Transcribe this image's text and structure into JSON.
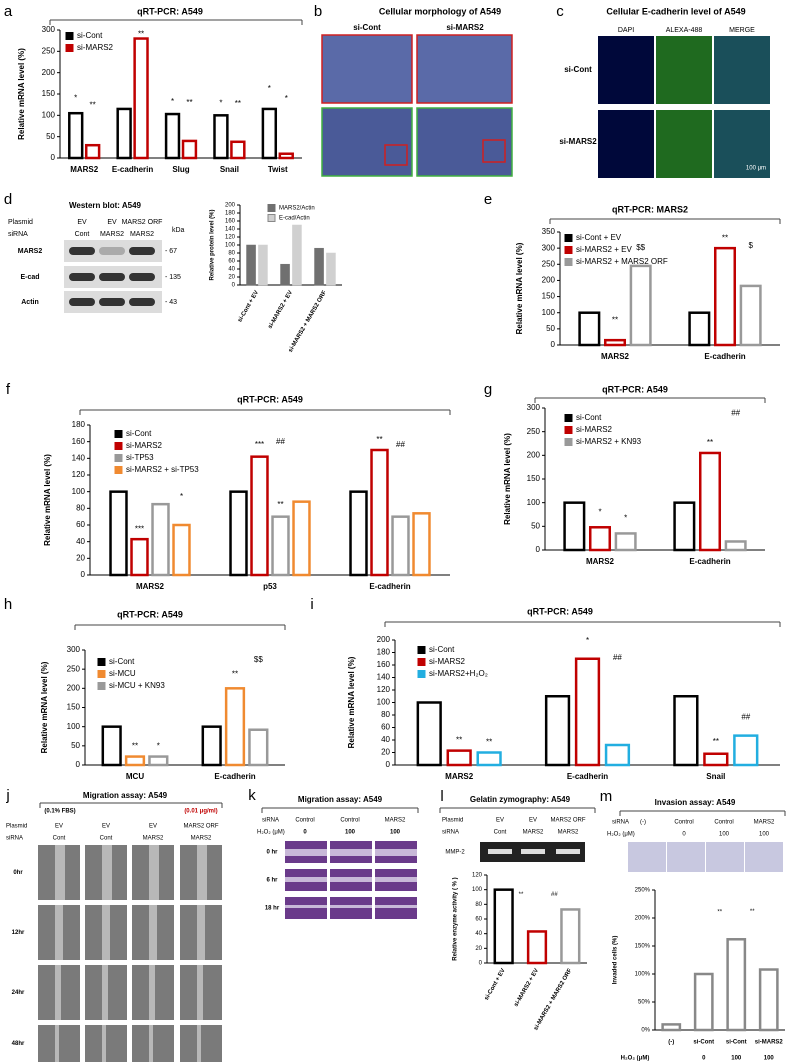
{
  "panels": {
    "b": {
      "label": "b",
      "title": "Cellular morphology of A549",
      "columns": [
        "si-Cont",
        "si-MARS2"
      ]
    },
    "c": {
      "label": "c",
      "title": "Cellular E-cadherin level of A549",
      "columns": [
        "DAPI",
        "ALEXA-488",
        "MERGE"
      ],
      "rows": [
        "si-Cont",
        "si-MARS2"
      ],
      "scale_bar": "100 μm"
    },
    "d": {
      "label": "d",
      "title": "Western blot: A549",
      "row_headers": [
        "Plasmid",
        "siRNA"
      ],
      "lanes": [
        [
          "EV",
          "Cont"
        ],
        [
          "EV",
          "MARS2"
        ],
        [
          "MARS2 ORF",
          "MARS2"
        ]
      ],
      "unit": "kDa",
      "bands": [
        "MARS2",
        "E-cad",
        "Actin"
      ],
      "sizes": [
        "- 67",
        "- 135",
        "- 43"
      ]
    },
    "j": {
      "label": "j",
      "title": "Migration assay: A549",
      "conditions": [
        "(0.1% FBS)",
        "(0.01 μg/ml)"
      ],
      "row_headers": [
        "Plasmid",
        "siRNA"
      ],
      "lanes": [
        [
          "EV",
          "Cont"
        ],
        [
          "EV",
          "Cont"
        ],
        [
          "EV",
          "MARS2"
        ],
        [
          "MARS2 ORF",
          "MARS2"
        ]
      ],
      "times": [
        "0hr",
        "12hr",
        "24hr",
        "48hr"
      ]
    },
    "k": {
      "label": "k",
      "title": "Migration assay: A549",
      "row_headers": [
        "siRNA",
        "H₂O₂ (μM)"
      ],
      "lanes": [
        [
          "Control",
          "0"
        ],
        [
          "Control",
          "100"
        ],
        [
          "MARS2",
          "100"
        ]
      ],
      "times": [
        "0 hr",
        "6 hr",
        "18 hr"
      ]
    },
    "l": {
      "title": "Gelatin zymography: A549",
      "row_headers": [
        "Plasmid",
        "siRNA"
      ],
      "lanes": [
        [
          "EV",
          "Cont"
        ],
        [
          "EV",
          "MARS2"
        ],
        [
          "MARS2 ORF",
          "MARS2"
        ]
      ],
      "band": "MMP-2"
    },
    "m": {
      "title": "Invasion assay: A549",
      "row_headers": [
        "siRNA",
        "H₂O₂ (μM)"
      ],
      "lanes": [
        [
          "(-)",
          null
        ],
        [
          "Control",
          "0"
        ],
        [
          "Control",
          "100"
        ],
        [
          "MARS2",
          "100"
        ]
      ]
    }
  },
  "chart_data": [
    {
      "type": "bar",
      "label": "a",
      "title": "qRT-PCR: A549",
      "ylabel": "Relative mRNA level (%)",
      "bar_style": "outline",
      "legend": "upper left",
      "categories": [
        "MARS2",
        "E-cadherin",
        "Slug",
        "Snail",
        "Twist"
      ],
      "series": [
        {
          "name": "si-Cont",
          "color": "#000000",
          "values": [
            105,
            115,
            103,
            100,
            115
          ]
        },
        {
          "name": "si-MARS2",
          "color": "#c00000",
          "values": [
            30,
            280,
            40,
            38,
            10
          ]
        }
      ],
      "ylim": [
        0,
        300
      ],
      "yticks": [
        0,
        50,
        100,
        150,
        200,
        250,
        300
      ],
      "annotations": [
        "*",
        "**",
        "**",
        "*",
        "**",
        "*",
        "**",
        "*",
        "*"
      ]
    },
    {
      "type": "bar",
      "ylabel": "Relative protein level (%)",
      "bar_style": "filled",
      "legend": "upper center",
      "categories": [
        "si-Cont + EV",
        "si-MARS2 + EV",
        "si-MARS2 + MARS2 ORF"
      ],
      "series": [
        {
          "name": "MARS2/Actin",
          "color": "#707070",
          "values": [
            100,
            52,
            92
          ]
        },
        {
          "name": "E-cad/Actin",
          "color": "#d0d0d0",
          "values": [
            100,
            150,
            80
          ]
        }
      ],
      "ylim": [
        0,
        200
      ],
      "yticks": [
        0,
        20,
        40,
        60,
        80,
        100,
        120,
        140,
        160,
        180,
        200
      ]
    },
    {
      "type": "bar",
      "label": "e",
      "title": "qRT-PCR: MARS2",
      "ylabel": "Relative mRNA level (%)",
      "bar_style": "outline",
      "legend": "upper left",
      "categories": [
        "MARS2",
        "E-cadherin"
      ],
      "series": [
        {
          "name": "si-Cont + EV",
          "color": "#000000",
          "values": [
            100,
            100
          ]
        },
        {
          "name": "si-MARS2 + EV",
          "color": "#c00000",
          "values": [
            15,
            300
          ]
        },
        {
          "name": "si-MARS2 + MARS2 ORF",
          "color": "#999999",
          "values": [
            245,
            183
          ]
        }
      ],
      "ylim": [
        0,
        350
      ],
      "yticks": [
        0,
        50,
        100,
        150,
        200,
        250,
        300,
        350
      ],
      "annotations": [
        "**",
        "$$",
        "**",
        "$"
      ]
    },
    {
      "type": "bar",
      "label": "f",
      "title": "qRT-PCR: A549",
      "ylabel": "Relative mRNA level (%)",
      "bar_style": "outline",
      "legend": "upper left",
      "categories": [
        "MARS2",
        "p53",
        "E-cadherin"
      ],
      "series": [
        {
          "name": "si-Cont",
          "color": "#000000",
          "values": [
            100,
            100,
            100
          ]
        },
        {
          "name": "si-MARS2",
          "color": "#c00000",
          "values": [
            43,
            142,
            150
          ]
        },
        {
          "name": "si-TP53",
          "color": "#999999",
          "values": [
            85,
            70,
            70
          ]
        },
        {
          "name": "si-MARS2 + si-TP53",
          "color": "#f08a30",
          "values": [
            60,
            88,
            74
          ]
        }
      ],
      "ylim": [
        0,
        180
      ],
      "yticks": [
        0,
        20,
        40,
        60,
        80,
        100,
        120,
        140,
        160,
        180
      ],
      "annotations": [
        "***",
        "*",
        "***",
        "**",
        "##",
        "**",
        "##"
      ]
    },
    {
      "type": "bar",
      "label": "g",
      "title": "qRT-PCR: A549",
      "ylabel": "Relative mRNA level (%)",
      "bar_style": "outline",
      "legend": "upper left",
      "categories": [
        "MARS2",
        "E-cadherin"
      ],
      "series": [
        {
          "name": "si-Cont",
          "color": "#000000",
          "values": [
            100,
            100
          ]
        },
        {
          "name": "si-MARS2",
          "color": "#c00000",
          "values": [
            48,
            205
          ]
        },
        {
          "name": "si-MARS2 + KN93",
          "color": "#999999",
          "values": [
            35,
            18
          ]
        }
      ],
      "ylim": [
        0,
        300
      ],
      "yticks": [
        0,
        50,
        100,
        150,
        200,
        250,
        300
      ],
      "annotations": [
        "*",
        "*",
        "**",
        "##"
      ]
    },
    {
      "type": "bar",
      "label": "h",
      "title": "qRT-PCR: A549",
      "ylabel": "Relative mRNA level (%)",
      "bar_style": "outline",
      "legend": "upper left",
      "categories": [
        "MCU",
        "E-cadherin"
      ],
      "series": [
        {
          "name": "si-Cont",
          "color": "#000000",
          "values": [
            100,
            100
          ]
        },
        {
          "name": "si-MCU",
          "color": "#f08a30",
          "values": [
            22,
            200
          ]
        },
        {
          "name": "si-MCU + KN93",
          "color": "#999999",
          "values": [
            22,
            92
          ]
        }
      ],
      "ylim": [
        0,
        300
      ],
      "yticks": [
        0,
        50,
        100,
        150,
        200,
        250,
        300
      ],
      "annotations": [
        "**",
        "*",
        "**",
        "$$"
      ]
    },
    {
      "type": "bar",
      "label": "i",
      "title": "qRT-PCR: A549",
      "ylabel": "Relative mRNA level (%)",
      "bar_style": "outline",
      "legend": "upper left",
      "categories": [
        "MARS2",
        "E-cadherin",
        "Snail"
      ],
      "series": [
        {
          "name": "si-Cont",
          "color": "#000000",
          "values": [
            100,
            110,
            110
          ]
        },
        {
          "name": "si-MARS2",
          "color": "#c00000",
          "values": [
            23,
            170,
            18
          ]
        },
        {
          "name": "si-MARS2+H₂O₂",
          "color": "#22aee0",
          "values": [
            20,
            32,
            47
          ]
        }
      ],
      "ylim": [
        0,
        200
      ],
      "yticks": [
        0,
        20,
        40,
        60,
        80,
        100,
        120,
        140,
        160,
        180,
        200
      ],
      "annotations": [
        "**",
        "**",
        "*",
        "##",
        "**",
        "##"
      ]
    },
    {
      "type": "bar",
      "label": "l",
      "ylabel": "Relative enzyme activity ( % )",
      "bar_style": "outline",
      "categories": [
        "si-Cont + EV",
        "si-MARS2 + EV",
        "si-MARS2 + MARS2 ORF"
      ],
      "values": [
        100,
        43,
        73
      ],
      "colors": [
        "#000000",
        "#c00000",
        "#999999"
      ],
      "ylim": [
        0,
        120
      ],
      "yticks": [
        0,
        20,
        40,
        60,
        80,
        100,
        120
      ],
      "annotations": [
        "**",
        "##"
      ]
    },
    {
      "type": "bar",
      "label": "m",
      "ylabel": "Invaded cells (%)",
      "bar_style": "outline",
      "categories": [
        "(-)",
        "si-Cont",
        "si-Cont",
        "si-MARS2"
      ],
      "x2": [
        null,
        "0",
        "100",
        "100"
      ],
      "x2_label": "H₂O₂ (μM)",
      "values": [
        10,
        100,
        162,
        108
      ],
      "color": "#888888",
      "ylim": [
        0,
        250
      ],
      "yticks": [
        {
          "value": 0,
          "label": "0%"
        },
        {
          "value": 50,
          "label": "50%"
        },
        {
          "value": 100,
          "label": "100%"
        },
        {
          "value": 150,
          "label": "150%"
        },
        {
          "value": 200,
          "label": "200%"
        },
        {
          "value": 250,
          "label": "250%"
        }
      ],
      "annotations": [
        "**",
        "**"
      ]
    }
  ]
}
